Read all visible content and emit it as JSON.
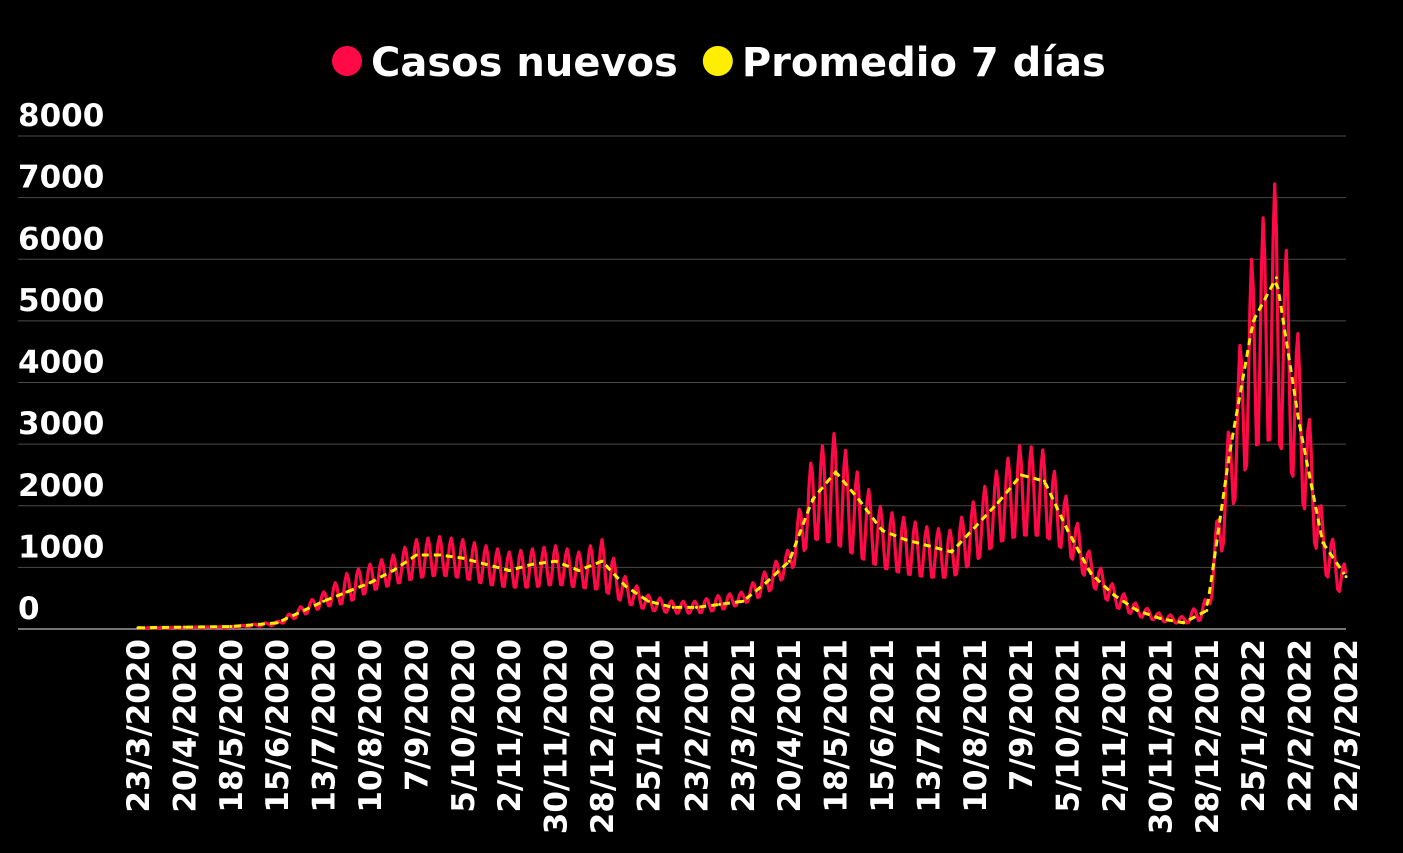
{
  "chart_data": {
    "type": "line",
    "title": "",
    "xlabel": "",
    "ylabel": "",
    "ylim": [
      0,
      8000
    ],
    "yticks": [
      0,
      1000,
      2000,
      3000,
      4000,
      5000,
      6000,
      7000,
      8000
    ],
    "grid": true,
    "legend_placement": "top-center",
    "x_tick_labels": [
      "23/3/2020",
      "20/4/2020",
      "18/5/2020",
      "15/6/2020",
      "13/7/2020",
      "10/8/2020",
      "7/9/2020",
      "5/10/2020",
      "2/11/2020",
      "30/11/2020",
      "28/12/2020",
      "25/1/2021",
      "23/2/2021",
      "23/3/2021",
      "20/4/2021",
      "18/5/2021",
      "15/6/2021",
      "13/7/2021",
      "10/8/2021",
      "7/9/2021",
      "5/10/2021",
      "2/11/2021",
      "30/11/2021",
      "28/12/2021",
      "25/1/2022",
      "22/2/2022",
      "22/3/2022"
    ],
    "series": [
      {
        "name": "Casos nuevos",
        "color": "#ff0a47",
        "style": "solid",
        "description": "weekly peak/trough envelope (daily values oscillate between low and high)",
        "x": [
          "23/3/2020",
          "20/4/2020",
          "18/5/2020",
          "15/6/2020",
          "13/7/2020",
          "27/7/2020",
          "10/8/2020",
          "24/8/2020",
          "7/9/2020",
          "21/9/2020",
          "5/10/2020",
          "19/10/2020",
          "2/11/2020",
          "16/11/2020",
          "30/11/2020",
          "14/12/2020",
          "28/12/2020",
          "11/1/2021",
          "25/1/2021",
          "9/2/2021",
          "23/2/2021",
          "9/3/2021",
          "23/3/2021",
          "6/4/2021",
          "20/4/2021",
          "4/5/2021",
          "18/5/2021",
          "1/6/2021",
          "15/6/2021",
          "29/6/2021",
          "13/7/2021",
          "27/7/2021",
          "10/8/2021",
          "24/8/2021",
          "7/9/2021",
          "21/9/2021",
          "5/10/2021",
          "19/10/2021",
          "2/11/2021",
          "16/11/2021",
          "30/11/2021",
          "14/12/2021",
          "28/12/2021",
          "11/1/2022",
          "25/1/2022",
          "8/2/2022",
          "22/2/2022",
          "8/3/2022",
          "22/3/2022"
        ],
        "high": [
          20,
          30,
          40,
          120,
          600,
          900,
          1050,
          1200,
          1450,
          1500,
          1450,
          1350,
          1250,
          1300,
          1350,
          1250,
          1450,
          850,
          550,
          450,
          450,
          550,
          600,
          950,
          1300,
          2800,
          3200,
          2500,
          1950,
          1800,
          1650,
          1600,
          2100,
          2600,
          3000,
          2900,
          2100,
          1200,
          700,
          400,
          250,
          200,
          500,
          3400,
          6200,
          7300,
          4600,
          1800,
          1000
        ],
        "low": [
          10,
          15,
          20,
          60,
          350,
          400,
          600,
          700,
          800,
          850,
          800,
          700,
          650,
          650,
          700,
          650,
          600,
          400,
          300,
          250,
          250,
          300,
          400,
          550,
          900,
          1400,
          1300,
          1100,
          950,
          850,
          800,
          800,
          1050,
          1350,
          1450,
          1450,
          1200,
          700,
          350,
          200,
          120,
          80,
          150,
          1800,
          2800,
          2900,
          2100,
          900,
          450
        ]
      },
      {
        "name": "Promedio 7 días",
        "color": "#ffee00",
        "style": "dashed",
        "x": [
          "23/3/2020",
          "20/4/2020",
          "18/5/2020",
          "15/6/2020",
          "13/7/2020",
          "27/7/2020",
          "10/8/2020",
          "24/8/2020",
          "7/9/2020",
          "21/9/2020",
          "5/10/2020",
          "19/10/2020",
          "2/11/2020",
          "16/11/2020",
          "30/11/2020",
          "14/12/2020",
          "28/12/2020",
          "11/1/2021",
          "25/1/2021",
          "9/2/2021",
          "23/2/2021",
          "9/3/2021",
          "23/3/2021",
          "6/4/2021",
          "20/4/2021",
          "4/5/2021",
          "18/5/2021",
          "1/6/2021",
          "15/6/2021",
          "29/6/2021",
          "13/7/2021",
          "27/7/2021",
          "10/8/2021",
          "24/8/2021",
          "7/9/2021",
          "21/9/2021",
          "5/10/2021",
          "19/10/2021",
          "2/11/2021",
          "16/11/2021",
          "30/11/2021",
          "14/12/2021",
          "28/12/2021",
          "11/1/2022",
          "25/1/2022",
          "8/2/2022",
          "22/2/2022",
          "8/3/2022",
          "22/3/2022"
        ],
        "values": [
          20,
          30,
          40,
          100,
          450,
          600,
          750,
          950,
          1200,
          1200,
          1150,
          1050,
          950,
          1050,
          1100,
          950,
          1100,
          700,
          450,
          350,
          350,
          400,
          450,
          750,
          1100,
          2100,
          2550,
          2100,
          1600,
          1450,
          1350,
          1250,
          1650,
          2050,
          2500,
          2400,
          1600,
          900,
          550,
          300,
          170,
          100,
          300,
          2900,
          5000,
          5700,
          3300,
          1400,
          850
        ]
      }
    ]
  }
}
